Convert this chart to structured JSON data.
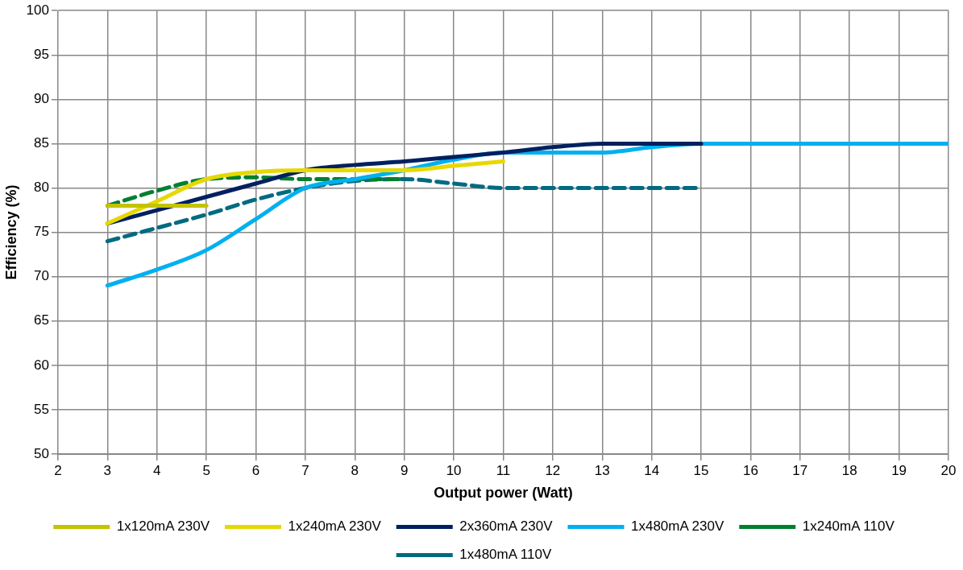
{
  "chart_data": {
    "type": "line",
    "xlabel": "Output power (Watt)",
    "ylabel": "Efficiency (%)",
    "xlim": [
      2,
      20
    ],
    "xticks": [
      2,
      3,
      4,
      5,
      6,
      7,
      8,
      9,
      10,
      11,
      12,
      13,
      14,
      15,
      16,
      17,
      18,
      19,
      20
    ],
    "ylim": [
      50,
      100
    ],
    "yticks": [
      50,
      55,
      60,
      65,
      70,
      75,
      80,
      85,
      90,
      95,
      100
    ],
    "grid": true,
    "legend": "bottom",
    "marker": "none",
    "series": [
      {
        "name": "1x120mA 230V",
        "color": "#c3c300",
        "line_style": "solid",
        "x": [
          3,
          5
        ],
        "values": [
          78,
          78
        ]
      },
      {
        "name": "1x240mA 230V",
        "color": "#e6d800",
        "line_style": "solid",
        "x": [
          3,
          4,
          5,
          6,
          7,
          8,
          9,
          10,
          11
        ],
        "values": [
          76,
          78.5,
          81,
          81.8,
          82,
          82,
          82,
          82.5,
          83
        ]
      },
      {
        "name": "2x360mA 230V",
        "color": "#002060",
        "line_style": "solid",
        "x": [
          3,
          4,
          5,
          6,
          7,
          8,
          9,
          10,
          11,
          12,
          13,
          14,
          15
        ],
        "values": [
          76,
          77.5,
          79,
          80.5,
          82,
          82.6,
          83,
          83.5,
          84,
          84.6,
          85,
          85,
          85
        ]
      },
      {
        "name": "1x480mA 230V",
        "color": "#00b0f0",
        "line_style": "solid",
        "x": [
          3,
          4,
          5,
          6,
          7,
          8,
          9,
          10,
          11,
          12,
          13,
          14,
          15,
          16,
          17,
          18,
          19,
          20
        ],
        "values": [
          69,
          70.8,
          73,
          76.5,
          80,
          81,
          82,
          83.2,
          84,
          84,
          84,
          84.6,
          85,
          85,
          85,
          85,
          85,
          85
        ]
      },
      {
        "name": "1x240mA 110V",
        "color": "#00802f",
        "line_style": "dashed",
        "x": [
          3,
          4,
          5,
          6,
          7,
          8,
          9
        ],
        "values": [
          78,
          79.7,
          81,
          81.2,
          81,
          81,
          81
        ]
      },
      {
        "name": "1x480mA 110V",
        "color": "#006b80",
        "line_style": "dashed",
        "x": [
          3,
          4,
          5,
          6,
          7,
          8,
          9,
          10,
          11,
          12,
          13,
          14,
          15
        ],
        "values": [
          74,
          75.5,
          77,
          78.7,
          80,
          80.8,
          81,
          80.5,
          80,
          80,
          80,
          80,
          80
        ]
      }
    ]
  }
}
